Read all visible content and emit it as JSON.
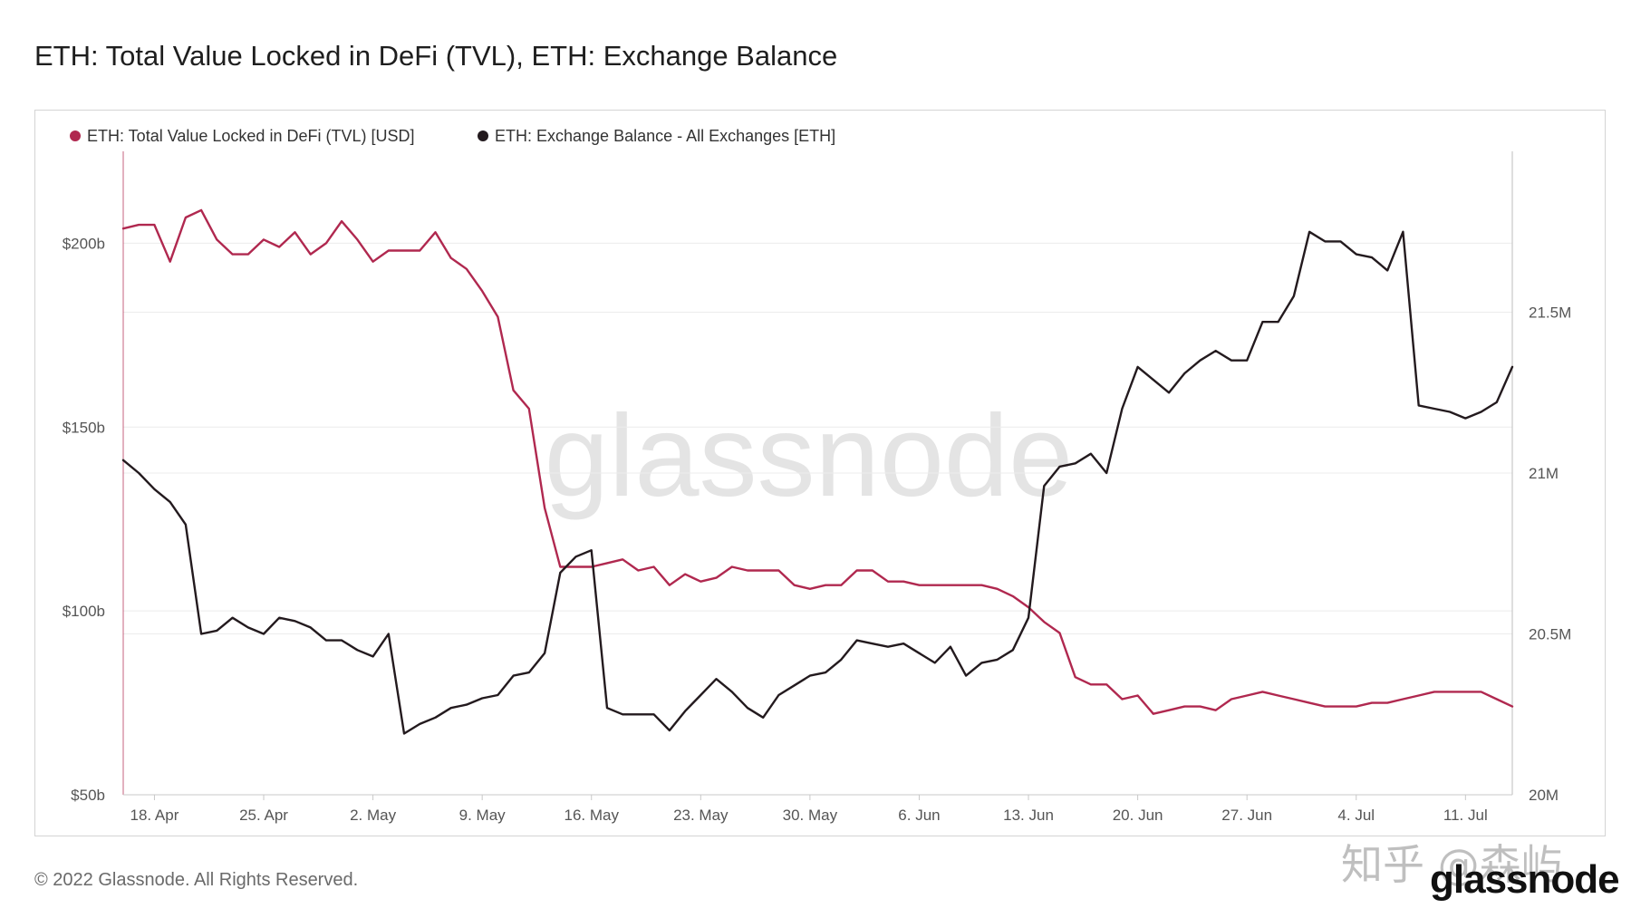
{
  "title": "ETH: Total Value Locked in DeFi (TVL), ETH: Exchange Balance",
  "copyright": "© 2022 Glassnode. All Rights Reserved.",
  "brand_logo": "glassnode",
  "site_watermark": "知乎 @森屿",
  "colors": {
    "tvl": "#b0284f",
    "balance": "#231a1e",
    "grid": "#ececec",
    "axis": "#c8c8c8"
  },
  "chart_data": {
    "type": "line",
    "watermark": "glassnode",
    "legend_position": "top-left",
    "grid": true,
    "xlabel": "",
    "x_ticks": [
      "18. Apr",
      "25. Apr",
      "2. May",
      "9. May",
      "16. May",
      "23. May",
      "30. May",
      "6. Jun",
      "13. Jun",
      "20. Jun",
      "27. Jun",
      "4. Jul",
      "11. Jul"
    ],
    "x_range": [
      "2022-04-16",
      "2022-07-14"
    ],
    "y_left": {
      "label": "",
      "ticks": [
        "$50b",
        "$100b",
        "$150b",
        "$200b"
      ],
      "range": [
        50,
        225
      ]
    },
    "y_right": {
      "label": "",
      "ticks": [
        "20M",
        "20.5M",
        "21M",
        "21.5M"
      ],
      "range": [
        20.0,
        22.0
      ]
    },
    "series": [
      {
        "name": "ETH: Total Value Locked in DeFi (TVL) [USD]",
        "axis": "left",
        "unit": "USD billions",
        "start_date": "2022-04-16",
        "step_days": 1,
        "values": [
          204,
          205,
          205,
          195,
          207,
          209,
          201,
          197,
          197,
          201,
          199,
          203,
          197,
          200,
          206,
          201,
          195,
          198,
          198,
          198,
          203,
          196,
          193,
          187,
          180,
          160,
          155,
          128,
          112,
          112,
          112,
          113,
          114,
          111,
          112,
          107,
          110,
          108,
          109,
          112,
          111,
          111,
          111,
          107,
          106,
          107,
          107,
          111,
          111,
          108,
          108,
          107,
          107,
          107,
          107,
          107,
          106,
          104,
          101,
          97,
          94,
          82,
          80,
          80,
          76,
          77,
          72,
          73,
          74,
          74,
          73,
          76,
          77,
          78,
          77,
          76,
          75,
          74,
          74,
          74,
          75,
          75,
          76,
          77,
          78,
          78,
          78,
          78,
          76,
          74
        ]
      },
      {
        "name": "ETH: Exchange Balance - All Exchanges [ETH]",
        "axis": "right",
        "unit": "ETH millions",
        "start_date": "2022-04-16",
        "step_days": 1,
        "values": [
          21.04,
          21.0,
          20.95,
          20.91,
          20.84,
          20.5,
          20.51,
          20.55,
          20.52,
          20.5,
          20.55,
          20.54,
          20.52,
          20.48,
          20.48,
          20.45,
          20.43,
          20.5,
          20.19,
          20.22,
          20.24,
          20.27,
          20.28,
          20.3,
          20.31,
          20.37,
          20.38,
          20.44,
          20.69,
          20.74,
          20.76,
          20.27,
          20.25,
          20.25,
          20.25,
          20.2,
          20.26,
          20.31,
          20.36,
          20.32,
          20.27,
          20.24,
          20.31,
          20.34,
          20.37,
          20.38,
          20.42,
          20.48,
          20.47,
          20.46,
          20.47,
          20.44,
          20.41,
          20.46,
          20.37,
          20.41,
          20.42,
          20.45,
          20.55,
          20.96,
          21.02,
          21.03,
          21.06,
          21.0,
          21.2,
          21.33,
          21.29,
          21.25,
          21.31,
          21.35,
          21.38,
          21.35,
          21.35,
          21.47,
          21.47,
          21.55,
          21.75,
          21.72,
          21.72,
          21.68,
          21.67,
          21.63,
          21.75,
          21.21,
          21.2,
          21.19,
          21.17,
          21.19,
          21.22,
          21.33
        ]
      }
    ]
  }
}
